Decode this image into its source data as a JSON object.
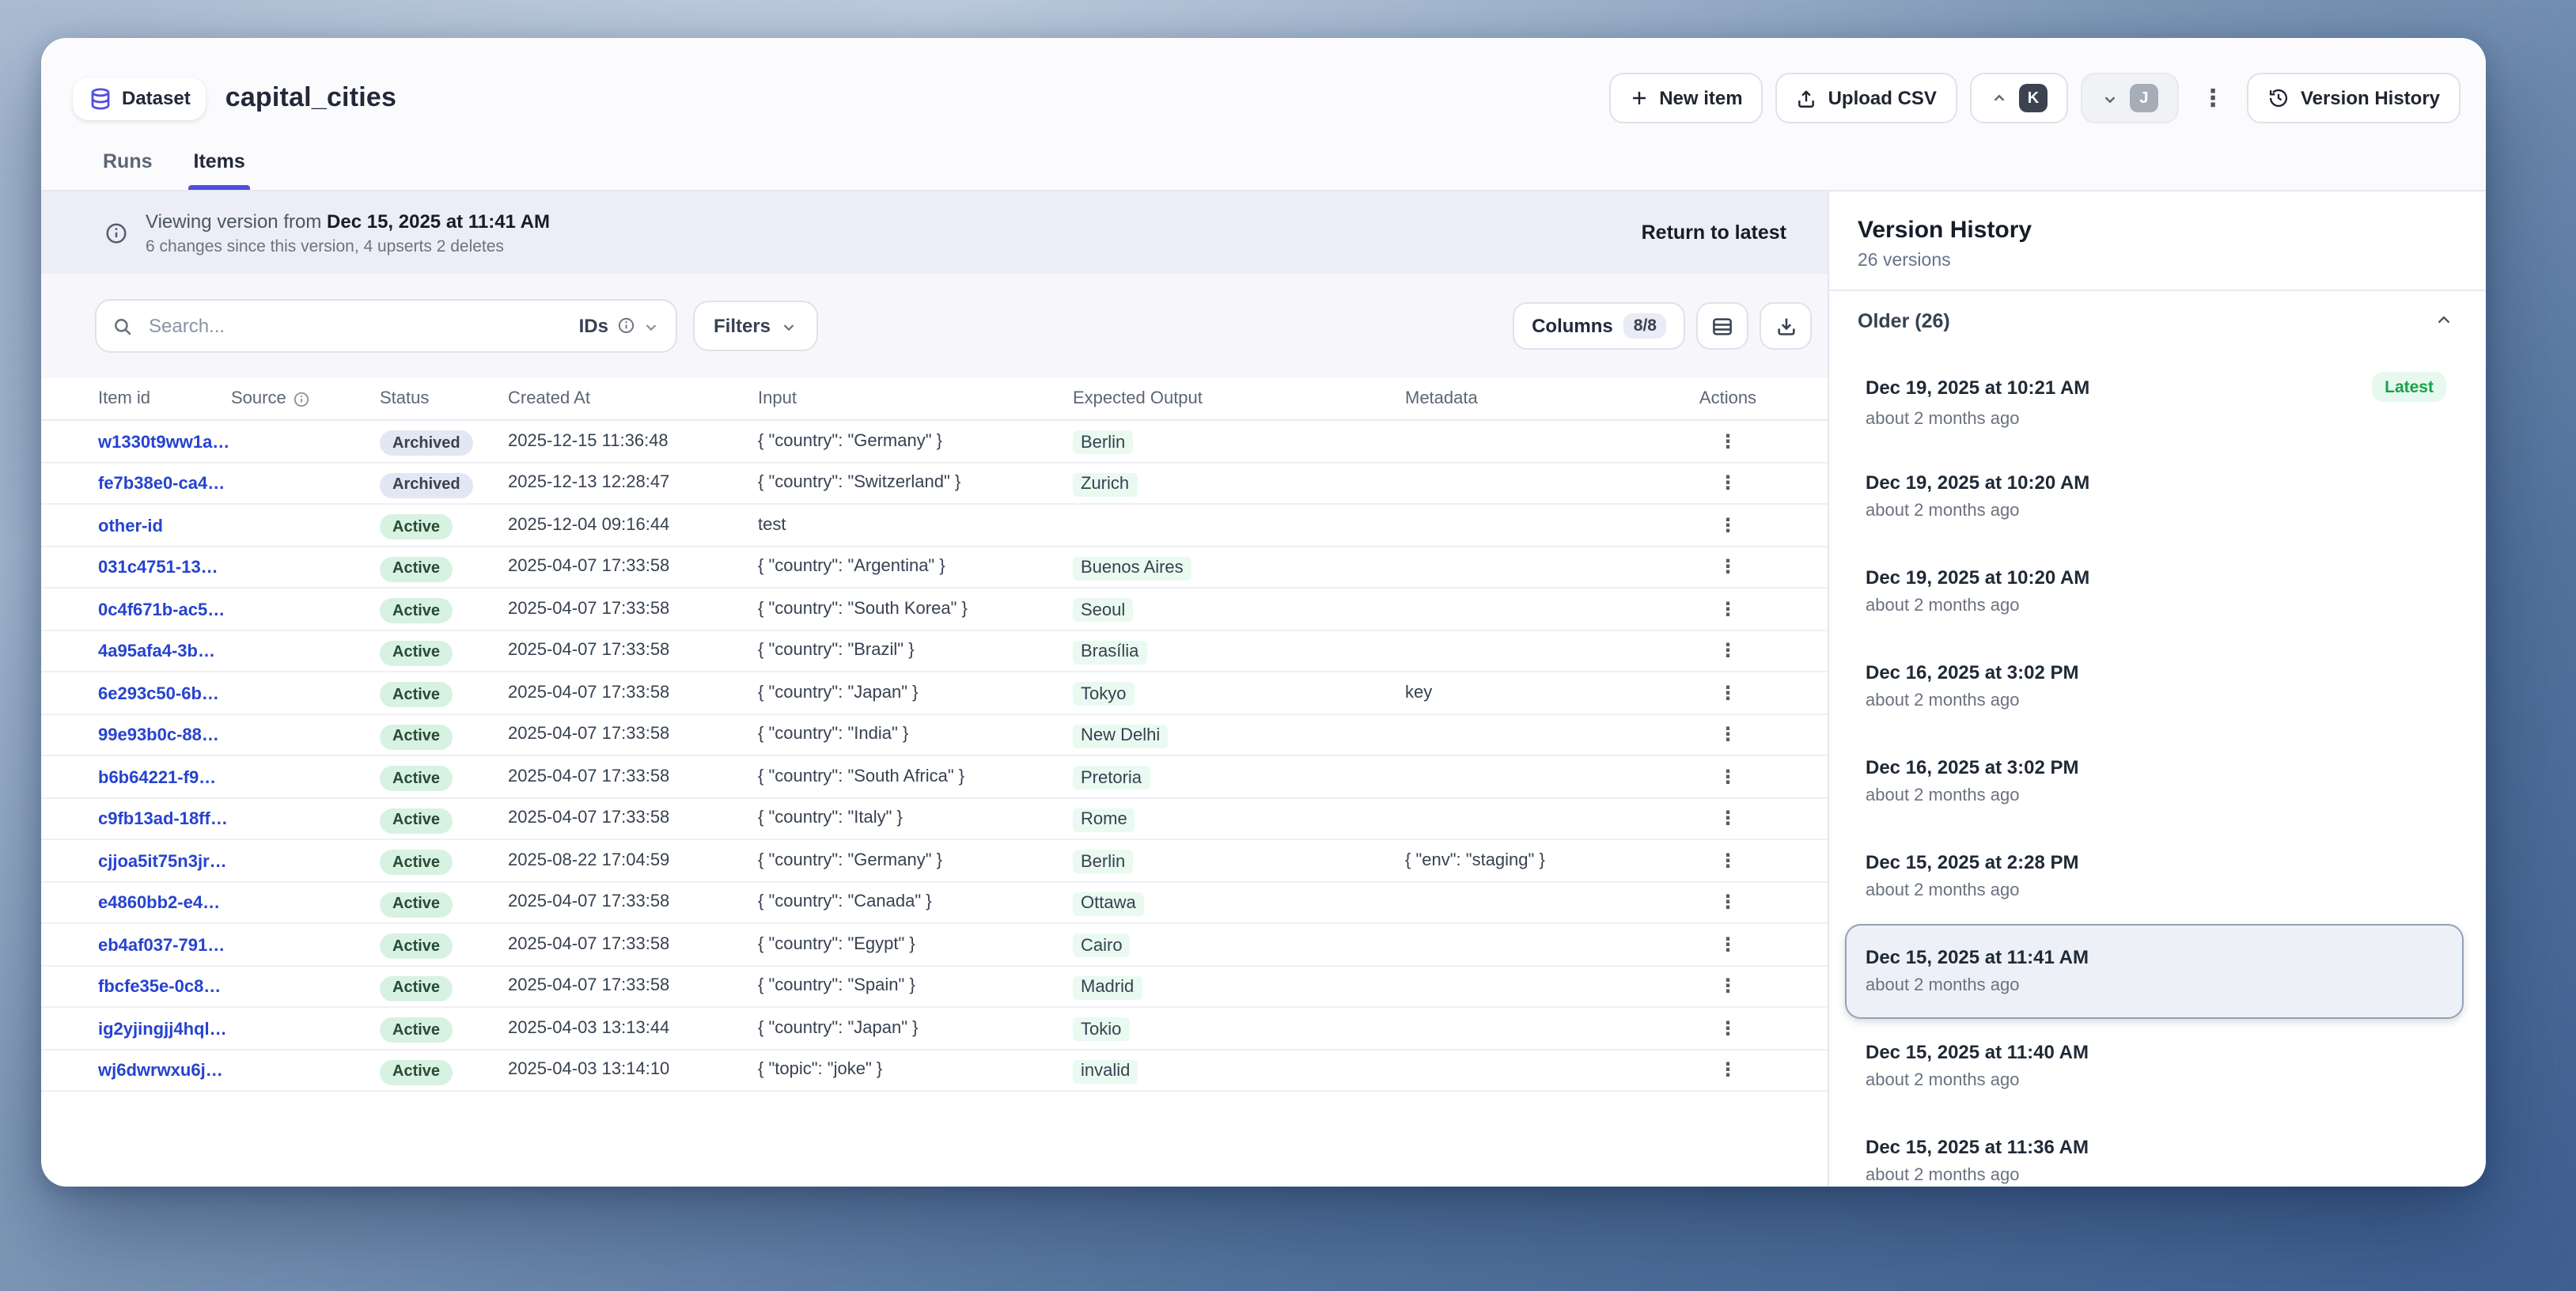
{
  "theme": {
    "accent": "#4f4ee0",
    "link_blue": "#2643cf",
    "active_badge_bg": "#d8f2e1",
    "archived_badge_bg": "#e3e6f3",
    "output_highlight_bg": "#eafaf0",
    "latest_green": "#17a34a",
    "banner_bg": "#ededf8"
  },
  "icons": {
    "dataset": "database-icon",
    "banner": "info-icon",
    "search": "search-icon",
    "ids_info": "info-icon",
    "dropdowns": "chevron-down-icon",
    "new_item": "plus-icon",
    "upload": "upload-icon",
    "overflow": "kebab-icon",
    "version_history": "clock-history-icon",
    "row_density": "table-rows-icon",
    "download": "download-icon",
    "older_collapse": "chevron-up-icon"
  },
  "header": {
    "badge": "Dataset",
    "title": "capital_cities",
    "actions": {
      "new_item": "New item",
      "upload_csv": "Upload CSV",
      "avatar_primary": "K",
      "avatar_secondary": "J",
      "version_history": "Version History"
    }
  },
  "tabs": {
    "runs": "Runs",
    "items": "Items",
    "active": "Items"
  },
  "banner": {
    "prefix": "Viewing version from",
    "date": "Dec 15, 2025 at 11:41 AM",
    "detail": "6 changes since this version, 4 upserts 2 deletes",
    "action": "Return to latest"
  },
  "toolbar": {
    "search_placeholder": "Search...",
    "search_scope": "IDs",
    "filters": "Filters",
    "columns": "Columns",
    "columns_badge": "8/8"
  },
  "table": {
    "columns": [
      "Item id",
      "Source",
      "Status",
      "Created At",
      "Input",
      "Expected Output",
      "Metadata",
      "Actions"
    ],
    "rows": [
      {
        "id": "w1330t9ww1a…",
        "source": "",
        "status": "Archived",
        "created": "2025-12-15 11:36:48",
        "input": "{ \"country\": \"Germany\" }",
        "output": "Berlin",
        "metadata": ""
      },
      {
        "id": "fe7b38e0-ca4…",
        "source": "",
        "status": "Archived",
        "created": "2025-12-13 12:28:47",
        "input": "{ \"country\": \"Switzerland\" }",
        "output": "Zurich",
        "metadata": ""
      },
      {
        "id": "other-id",
        "source": "",
        "status": "Active",
        "created": "2025-12-04 09:16:44",
        "input": "test",
        "output": "",
        "metadata": ""
      },
      {
        "id": "031c4751-13…",
        "source": "",
        "status": "Active",
        "created": "2025-04-07 17:33:58",
        "input": "{ \"country\": \"Argentina\" }",
        "output": "Buenos Aires",
        "metadata": ""
      },
      {
        "id": "0c4f671b-ac5…",
        "source": "",
        "status": "Active",
        "created": "2025-04-07 17:33:58",
        "input": "{ \"country\": \"South Korea\" }",
        "output": "Seoul",
        "metadata": ""
      },
      {
        "id": "4a95afa4-3b…",
        "source": "",
        "status": "Active",
        "created": "2025-04-07 17:33:58",
        "input": "{ \"country\": \"Brazil\" }",
        "output": "Brasília",
        "metadata": ""
      },
      {
        "id": "6e293c50-6b…",
        "source": "",
        "status": "Active",
        "created": "2025-04-07 17:33:58",
        "input": "{ \"country\": \"Japan\" }",
        "output": "Tokyo",
        "metadata": "key"
      },
      {
        "id": "99e93b0c-88…",
        "source": "",
        "status": "Active",
        "created": "2025-04-07 17:33:58",
        "input": "{ \"country\": \"India\" }",
        "output": "New Delhi",
        "metadata": ""
      },
      {
        "id": "b6b64221-f9…",
        "source": "",
        "status": "Active",
        "created": "2025-04-07 17:33:58",
        "input": "{ \"country\": \"South Africa\" }",
        "output": "Pretoria",
        "metadata": ""
      },
      {
        "id": "c9fb13ad-18ff…",
        "source": "",
        "status": "Active",
        "created": "2025-04-07 17:33:58",
        "input": "{ \"country\": \"Italy\" }",
        "output": "Rome",
        "metadata": ""
      },
      {
        "id": "cjjoa5it75n3jr…",
        "source": "",
        "status": "Active",
        "created": "2025-08-22 17:04:59",
        "input": "{ \"country\": \"Germany\" }",
        "output": "Berlin",
        "metadata": "{ \"env\": \"staging\" }"
      },
      {
        "id": "e4860bb2-e4…",
        "source": "",
        "status": "Active",
        "created": "2025-04-07 17:33:58",
        "input": "{ \"country\": \"Canada\" }",
        "output": "Ottawa",
        "metadata": ""
      },
      {
        "id": "eb4af037-791…",
        "source": "",
        "status": "Active",
        "created": "2025-04-07 17:33:58",
        "input": "{ \"country\": \"Egypt\" }",
        "output": "Cairo",
        "metadata": ""
      },
      {
        "id": "fbcfe35e-0c8…",
        "source": "",
        "status": "Active",
        "created": "2025-04-07 17:33:58",
        "input": "{ \"country\": \"Spain\" }",
        "output": "Madrid",
        "metadata": ""
      },
      {
        "id": "ig2yjingjj4hql…",
        "source": "",
        "status": "Active",
        "created": "2025-04-03 13:13:44",
        "input": "{ \"country\": \"Japan\" }",
        "output": "Tokio",
        "metadata": ""
      },
      {
        "id": "wj6dwrwxu6j…",
        "source": "",
        "status": "Active",
        "created": "2025-04-03 13:14:10",
        "input": "{ \"topic\": \"joke\" }",
        "output": "invalid",
        "metadata": ""
      }
    ]
  },
  "version_panel": {
    "title": "Version History",
    "count": "26 versions",
    "group_label": "Older (26)",
    "latest_badge": "Latest",
    "items": [
      {
        "date": "Dec 19, 2025 at 10:21 AM",
        "ago": "about 2 months ago",
        "latest": true,
        "selected": false
      },
      {
        "date": "Dec 19, 2025 at 10:20 AM",
        "ago": "about 2 months ago",
        "latest": false,
        "selected": false
      },
      {
        "date": "Dec 19, 2025 at 10:20 AM",
        "ago": "about 2 months ago",
        "latest": false,
        "selected": false
      },
      {
        "date": "Dec 16, 2025 at 3:02 PM",
        "ago": "about 2 months ago",
        "latest": false,
        "selected": false
      },
      {
        "date": "Dec 16, 2025 at 3:02 PM",
        "ago": "about 2 months ago",
        "latest": false,
        "selected": false
      },
      {
        "date": "Dec 15, 2025 at 2:28 PM",
        "ago": "about 2 months ago",
        "latest": false,
        "selected": false
      },
      {
        "date": "Dec 15, 2025 at 11:41 AM",
        "ago": "about 2 months ago",
        "latest": false,
        "selected": true
      },
      {
        "date": "Dec 15, 2025 at 11:40 AM",
        "ago": "about 2 months ago",
        "latest": false,
        "selected": false
      },
      {
        "date": "Dec 15, 2025 at 11:36 AM",
        "ago": "about 2 months ago",
        "latest": false,
        "selected": false
      }
    ]
  }
}
